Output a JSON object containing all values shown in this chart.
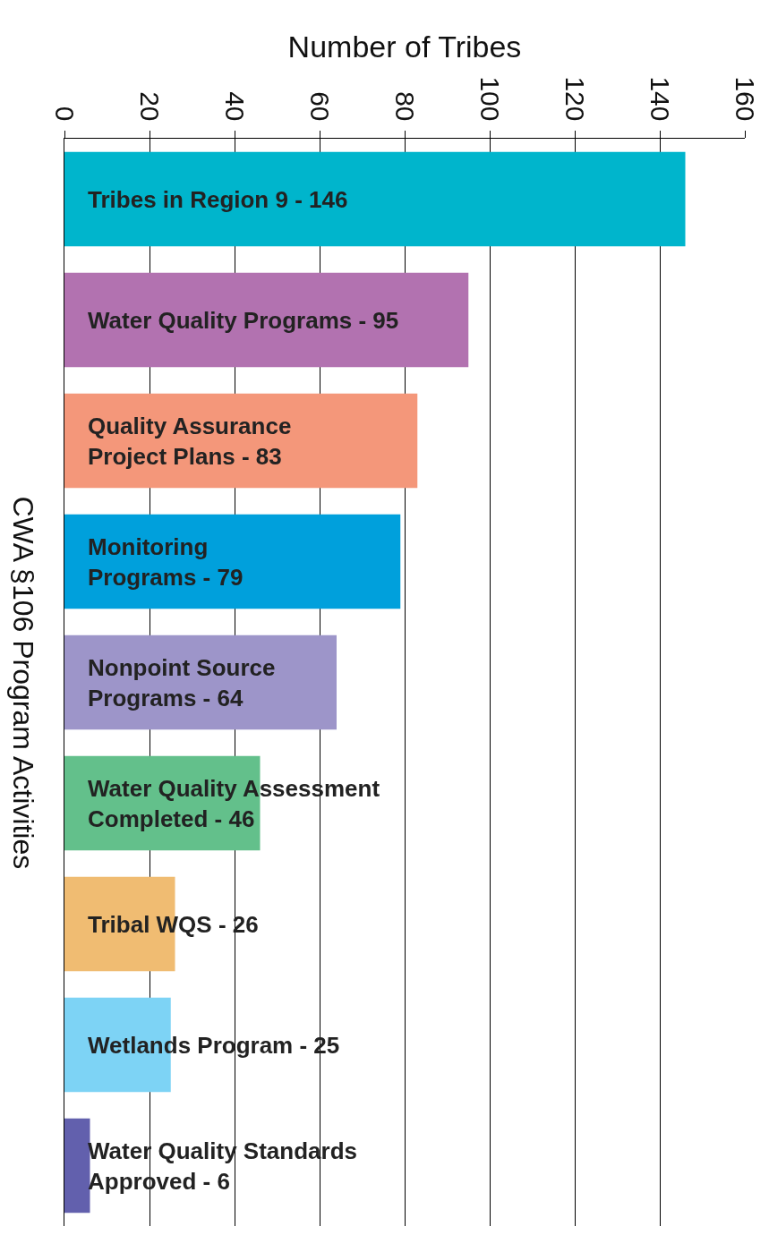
{
  "chart_data": {
    "type": "bar",
    "orientation": "horizontal",
    "xlabel": "Number of Tribes",
    "ylabel": "CWA §106 Program Activities",
    "categories": [
      "Tribes in Region 9 - 146",
      "Water Quality Programs - 95",
      "Quality Assurance\nProject Plans - 83",
      "Monitoring\nPrograms - 79",
      "Nonpoint Source\nPrograms - 64",
      "Water Quality Assessment\nCompleted - 46",
      "Tribal WQS - 26",
      "Wetlands Program - 25",
      "Water Quality Standards\nApproved - 6"
    ],
    "values": [
      146,
      95,
      83,
      79,
      64,
      46,
      26,
      25,
      6
    ],
    "colors": [
      "#00b5cc",
      "#b272b0",
      "#f4977a",
      "#00a0dc",
      "#9d95c9",
      "#63c08b",
      "#f0bc72",
      "#7dd3f5",
      "#6260ad"
    ],
    "xlim": [
      0,
      160
    ],
    "xticks": [
      0,
      20,
      40,
      60,
      80,
      100,
      120,
      140,
      160
    ],
    "grid": "x",
    "tick_labels": "x"
  }
}
